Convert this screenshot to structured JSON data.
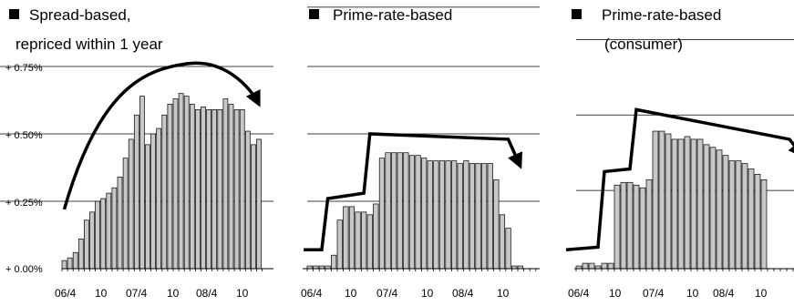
{
  "colors": {
    "bar_fill": "#c8c8c8",
    "bar_stroke": "#000000",
    "line": "#000000",
    "grid": "#000000"
  },
  "chart_data": [
    {
      "type": "bar",
      "title_lines": [
        "Spread-based,",
        "repriced within 1 year"
      ],
      "x_tick_labels": [
        "06/4",
        "10",
        "07/4",
        "10",
        "08/4",
        "10"
      ],
      "y_tick_labels": [
        "+ 0.00%",
        "+ 0.25%",
        "+ 0.50%",
        "+ 0.75%"
      ],
      "ylim": [
        0,
        0.75
      ],
      "values": [
        0.03,
        0.04,
        0.06,
        0.11,
        0.18,
        0.21,
        0.25,
        0.26,
        0.28,
        0.3,
        0.34,
        0.41,
        0.48,
        0.57,
        0.64,
        0.46,
        0.5,
        0.52,
        0.57,
        0.61,
        0.63,
        0.65,
        0.64,
        0.61,
        0.59,
        0.6,
        0.59,
        0.59,
        0.59,
        0.63,
        0.61,
        0.59,
        0.59,
        0.51,
        0.46,
        0.48
      ],
      "arrow_path": [
        [
          0,
          0.22
        ],
        [
          17,
          0.74
        ],
        [
          22,
          0.76
        ],
        [
          35,
          0.61
        ]
      ]
    },
    {
      "type": "bar",
      "title_lines": [
        "Prime-rate-based"
      ],
      "x_tick_labels": [
        "06/4",
        "10",
        "07/4",
        "10",
        "08/4",
        "10"
      ],
      "values": [
        0.01,
        0.01,
        0.01,
        0.01,
        0.05,
        0.18,
        0.23,
        0.23,
        0.21,
        0.21,
        0.2,
        0.24,
        0.41,
        0.43,
        0.43,
        0.43,
        0.43,
        0.42,
        0.42,
        0.41,
        0.4,
        0.4,
        0.4,
        0.4,
        0.4,
        0.39,
        0.4,
        0.39,
        0.39,
        0.39,
        0.39,
        0.33,
        0.2,
        0.15,
        0.01,
        0.01
      ],
      "arrow_path": [
        [
          -1,
          0.07
        ],
        [
          2,
          0.07
        ],
        [
          3,
          0.26
        ],
        [
          9,
          0.28
        ],
        [
          10,
          0.5
        ],
        [
          33,
          0.48
        ],
        [
          35,
          0.38
        ]
      ]
    },
    {
      "type": "bar",
      "title_lines": [
        "Prime-rate-based",
        "(consumer)"
      ],
      "x_tick_labels": [
        "06/4",
        "10",
        "07/4",
        "10",
        "08/4",
        "10"
      ],
      "values": [
        0.01,
        0.02,
        0.02,
        0.01,
        0.02,
        0.02,
        0.31,
        0.32,
        0.32,
        0.31,
        0.3,
        0.33,
        0.51,
        0.51,
        0.5,
        0.48,
        0.48,
        0.49,
        0.48,
        0.48,
        0.46,
        0.45,
        0.44,
        0.42,
        0.4,
        0.4,
        0.39,
        0.37,
        0.35,
        0.33
      ],
      "arrow_path": [
        [
          -2,
          0.07
        ],
        [
          3,
          0.08
        ],
        [
          4,
          0.36
        ],
        [
          8,
          0.37
        ],
        [
          9,
          0.59
        ],
        [
          33,
          0.48
        ],
        [
          35,
          0.42
        ]
      ]
    }
  ]
}
